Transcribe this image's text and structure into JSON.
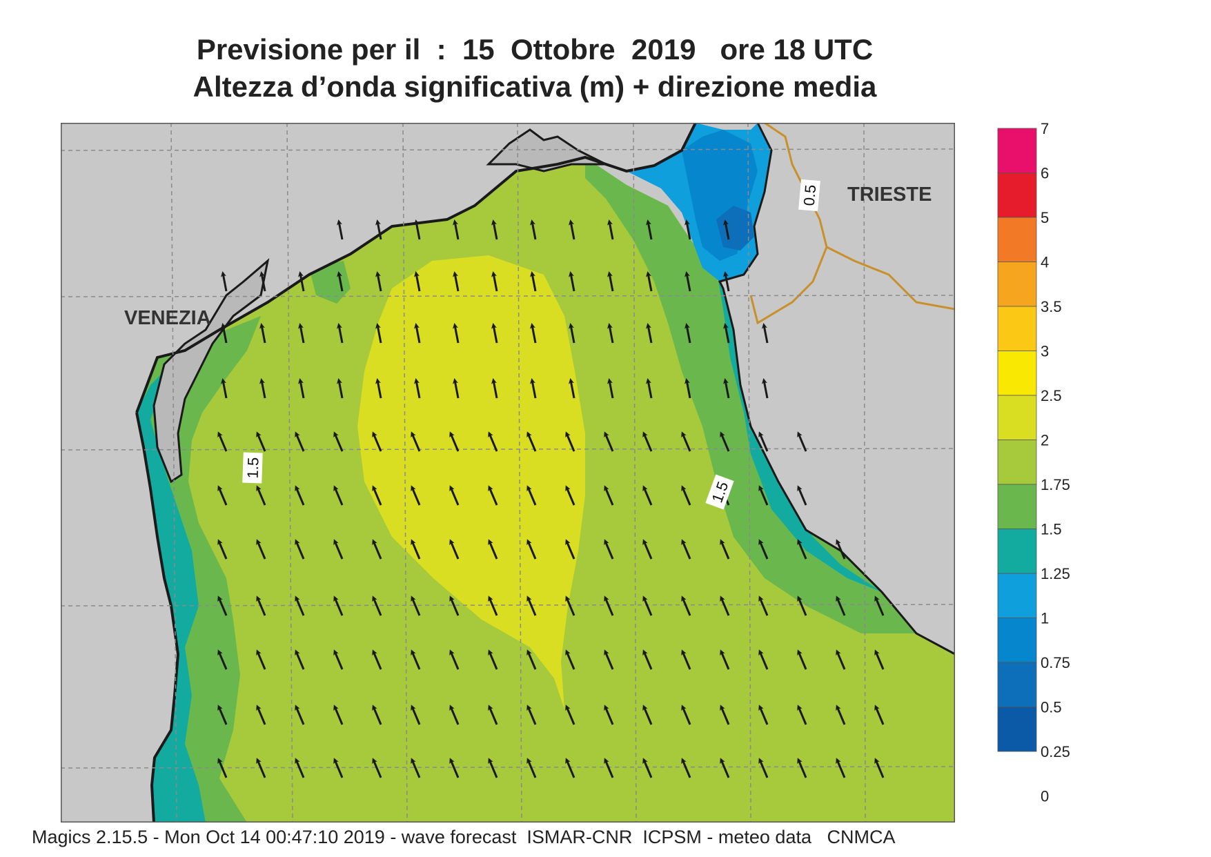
{
  "header": {
    "line1": "Previsione per il  :  15  Ottobre  2019   ore 18 UTC",
    "line2": "Altezza d’onda significativa (m) + direzione media"
  },
  "footer": "Magics 2.15.5 - Mon Oct 14 00:47:10 2019 - wave forecast  ISMAR-CNR  ICPSM - meteo data   CNMCA",
  "map": {
    "cities": [
      {
        "id": "venezia",
        "label": "VENEZIA"
      },
      {
        "id": "trieste",
        "label": "TRIESTE"
      }
    ],
    "contour_labels": [
      {
        "id": "west",
        "value": "1.5"
      },
      {
        "id": "east",
        "value": "1.5"
      },
      {
        "id": "ne",
        "value": "0.5"
      }
    ],
    "mean_wave_direction": "towards north-west",
    "colors": {
      "land": "#c8c8c8",
      "coast": "#1a1a1a",
      "border": "#c8902a",
      "grid": "#8a8a8a",
      "arrow": "#1a1a1a"
    }
  },
  "legend": {
    "ticks": [
      "7",
      "6",
      "5",
      "4",
      "3.5",
      "3",
      "2.5",
      "2",
      "1.75",
      "1.5",
      "1.25",
      "1",
      "0.75",
      "0.5",
      "0.25",
      "0"
    ],
    "colors": [
      "#e8106b",
      "#e61c2c",
      "#f27a26",
      "#f6a51f",
      "#fbc915",
      "#f8e802",
      "#d9de22",
      "#a7c93c",
      "#6ab84d",
      "#13aba0",
      "#0f9fdc",
      "#0686cc",
      "#0d6fb9",
      "#0a5aa8"
    ]
  }
}
